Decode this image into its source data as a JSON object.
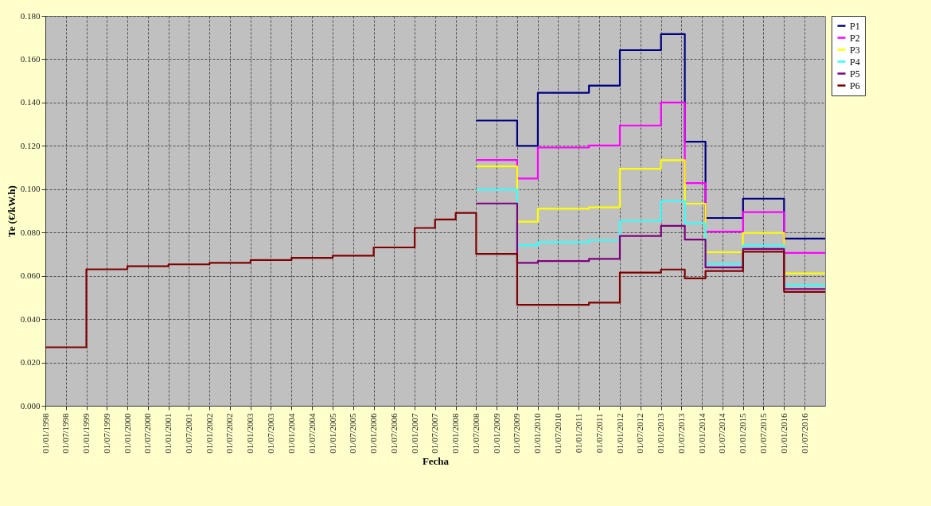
{
  "chart_data": {
    "type": "step",
    "xlabel": "Fecha",
    "ylabel": "Te (€/kW.h)",
    "x": [
      "1998-01-01",
      "1999-01-01",
      "2000-01-01",
      "2001-01-01",
      "2002-01-01",
      "2003-01-01",
      "2004-01-01",
      "2005-01-01",
      "2006-01-01",
      "2007-01-01",
      "2007-07-01",
      "2008-01-01",
      "2008-07-01",
      "2009-07-01",
      "2010-01-01",
      "2011-04-01",
      "2012-01-01",
      "2013-01-01",
      "2013-08-01",
      "2014-02-01",
      "2015-01-01",
      "2016-01-01",
      "2017-01-01"
    ],
    "series": [
      {
        "name": "P1",
        "color": "#000080",
        "values": [
          null,
          null,
          null,
          null,
          null,
          null,
          null,
          null,
          null,
          null,
          null,
          null,
          0.1317,
          0.12,
          0.1445,
          0.1478,
          0.1642,
          0.1716,
          0.1219,
          0.0867,
          0.0956,
          0.0772,
          0.0772
        ]
      },
      {
        "name": "P2",
        "color": "#ff00ff",
        "values": [
          null,
          null,
          null,
          null,
          null,
          null,
          null,
          null,
          null,
          null,
          null,
          null,
          0.1135,
          0.1049,
          0.1192,
          0.1202,
          0.1294,
          0.14,
          0.1028,
          0.0804,
          0.0894,
          0.0706,
          0.0706
        ]
      },
      {
        "name": "P3",
        "color": "#ffff00",
        "values": [
          null,
          null,
          null,
          null,
          null,
          null,
          null,
          null,
          null,
          null,
          null,
          null,
          0.1105,
          0.085,
          0.091,
          0.0916,
          0.1094,
          0.1134,
          0.0933,
          0.0709,
          0.0798,
          0.0611,
          0.0611
        ]
      },
      {
        "name": "P4",
        "color": "#33ffff",
        "values": [
          null,
          null,
          null,
          null,
          null,
          null,
          null,
          null,
          null,
          null,
          null,
          null,
          0.0998,
          0.0741,
          0.0755,
          0.0764,
          0.0854,
          0.0945,
          0.0842,
          0.0654,
          0.074,
          0.0556,
          0.0556
        ]
      },
      {
        "name": "P5",
        "color": "#800080",
        "values": [
          null,
          null,
          null,
          null,
          null,
          null,
          null,
          null,
          null,
          null,
          null,
          null,
          0.0934,
          0.066,
          0.0668,
          0.0678,
          0.0784,
          0.0831,
          0.0767,
          0.0639,
          0.0724,
          0.0539,
          0.0539
        ]
      },
      {
        "name": "P6",
        "color": "#800000",
        "values": [
          0.027,
          0.063,
          0.0644,
          0.0653,
          0.066,
          0.0673,
          0.0683,
          0.0693,
          0.0731,
          0.0821,
          0.086,
          0.089,
          0.0701,
          0.0466,
          0.0466,
          0.0476,
          0.0615,
          0.0629,
          0.0588,
          0.0622,
          0.0711,
          0.0526,
          0.0526
        ]
      }
    ],
    "xlim": [
      "1998-01-01",
      "2017-01-01"
    ],
    "xticks": [
      {
        "value": "1998-01-01",
        "label": "01/01/1998"
      },
      {
        "value": "1998-07-01",
        "label": "01/07/1998"
      },
      {
        "value": "1999-01-01",
        "label": "01/01/1999"
      },
      {
        "value": "1999-07-01",
        "label": "01/07/1999"
      },
      {
        "value": "2000-01-01",
        "label": "01/01/2000"
      },
      {
        "value": "2000-07-01",
        "label": "01/07/2000"
      },
      {
        "value": "2001-01-01",
        "label": "01/01/2001"
      },
      {
        "value": "2001-07-01",
        "label": "01/07/2001"
      },
      {
        "value": "2002-01-01",
        "label": "01/01/2002"
      },
      {
        "value": "2002-07-01",
        "label": "01/07/2002"
      },
      {
        "value": "2003-01-01",
        "label": "01/01/2003"
      },
      {
        "value": "2003-07-01",
        "label": "01/07/2003"
      },
      {
        "value": "2004-01-01",
        "label": "01/01/2004"
      },
      {
        "value": "2004-07-01",
        "label": "01/07/2004"
      },
      {
        "value": "2005-01-01",
        "label": "01/01/2005"
      },
      {
        "value": "2005-07-01",
        "label": "01/07/2005"
      },
      {
        "value": "2006-01-01",
        "label": "01/01/2006"
      },
      {
        "value": "2006-07-01",
        "label": "01/07/2006"
      },
      {
        "value": "2007-01-01",
        "label": "01/01/2007"
      },
      {
        "value": "2007-07-01",
        "label": "01/07/2007"
      },
      {
        "value": "2008-01-01",
        "label": "01/01/2008"
      },
      {
        "value": "2008-07-01",
        "label": "01/07/2008"
      },
      {
        "value": "2009-01-01",
        "label": "01/01/2009"
      },
      {
        "value": "2009-07-01",
        "label": "01/07/2009"
      },
      {
        "value": "2010-01-01",
        "label": "01/01/2010"
      },
      {
        "value": "2010-07-01",
        "label": "01/07/2010"
      },
      {
        "value": "2011-01-01",
        "label": "01/01/2011"
      },
      {
        "value": "2011-07-01",
        "label": "01/07/2011"
      },
      {
        "value": "2012-01-01",
        "label": "01/01/2012"
      },
      {
        "value": "2012-07-01",
        "label": "01/07/2012"
      },
      {
        "value": "2013-01-01",
        "label": "01/01/2013"
      },
      {
        "value": "2013-07-01",
        "label": "01/07/2013"
      },
      {
        "value": "2014-01-01",
        "label": "01/01/2014"
      },
      {
        "value": "2014-07-01",
        "label": "01/07/2014"
      },
      {
        "value": "2015-01-01",
        "label": "01/01/2015"
      },
      {
        "value": "2015-07-01",
        "label": "01/07/2015"
      },
      {
        "value": "2016-01-01",
        "label": "01/01/2016"
      },
      {
        "value": "2016-07-01",
        "label": "01/07/2016"
      }
    ],
    "ylim": [
      0,
      0.18
    ],
    "yticks": [
      {
        "value": 0,
        "label": "0.000"
      },
      {
        "value": 0.02,
        "label": "0.020"
      },
      {
        "value": 0.04,
        "label": "0.040"
      },
      {
        "value": 0.06,
        "label": "0.060"
      },
      {
        "value": 0.08,
        "label": "0.080"
      },
      {
        "value": 0.1,
        "label": "0.100"
      },
      {
        "value": 0.12,
        "label": "0.120"
      },
      {
        "value": 0.14,
        "label": "0.140"
      },
      {
        "value": 0.16,
        "label": "0.160"
      },
      {
        "value": 0.18,
        "label": "0.180"
      }
    ],
    "grid": true,
    "legend": "right",
    "line_style": "solid"
  }
}
